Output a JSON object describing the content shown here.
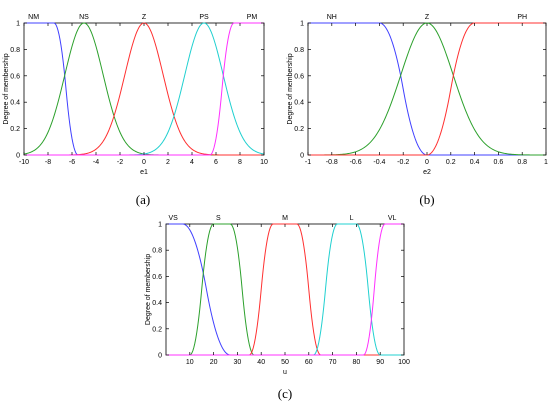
{
  "chart_data": [
    {
      "type": "line",
      "caption": "(a)",
      "xlabel": "e1",
      "ylabel": "Degree of membership",
      "xlim": [
        -10,
        10
      ],
      "ylim": [
        0,
        1
      ],
      "xticks": [
        -10,
        -8,
        -6,
        -4,
        -2,
        0,
        2,
        4,
        6,
        8,
        10
      ],
      "yticks": [
        0,
        0.2,
        0.4,
        0.6,
        0.8,
        1
      ],
      "grid": false,
      "series": [
        {
          "name": "NM",
          "shape": "zshape",
          "params": [
            -7.5,
            -5.5
          ],
          "color": "#4040ff",
          "label_at": -9.2
        },
        {
          "name": "NS",
          "shape": "gauss",
          "params": [
            -5,
            1.6
          ],
          "color": "#2ca02c",
          "label_at": -5
        },
        {
          "name": "Z",
          "shape": "gauss",
          "params": [
            0,
            1.6
          ],
          "color": "#ff3030",
          "label_at": 0
        },
        {
          "name": "PS",
          "shape": "gauss",
          "params": [
            5,
            1.6
          ],
          "color": "#20d0d0",
          "label_at": 5
        },
        {
          "name": "PM",
          "shape": "sshape",
          "params": [
            5.5,
            7.5
          ],
          "color": "#ff30ff",
          "label_at": 9.0
        }
      ]
    },
    {
      "type": "line",
      "caption": "(b)",
      "xlabel": "e2",
      "ylabel": "Degree of membership",
      "xlim": [
        -1,
        1
      ],
      "ylim": [
        0,
        1
      ],
      "xticks": [
        -1,
        -0.8,
        -0.6,
        -0.4,
        -0.2,
        0,
        0.2,
        0.4,
        0.6,
        0.8,
        1
      ],
      "yticks": [
        0,
        0.2,
        0.4,
        0.6,
        0.8,
        1
      ],
      "grid": false,
      "series": [
        {
          "name": "NH",
          "shape": "zshape",
          "params": [
            -0.4,
            0.0
          ],
          "color": "#4040ff",
          "label_at": -0.8
        },
        {
          "name": "Z",
          "shape": "gauss",
          "params": [
            0,
            0.22
          ],
          "color": "#2ca02c",
          "label_at": 0
        },
        {
          "name": "PH",
          "shape": "sshape",
          "params": [
            0.0,
            0.4
          ],
          "color": "#ff3030",
          "label_at": 0.8
        }
      ]
    },
    {
      "type": "line",
      "caption": "(c)",
      "xlabel": "u",
      "ylabel": "Degree of membership",
      "xlim": [
        0,
        100
      ],
      "ylim": [
        0,
        1
      ],
      "xticks": [
        10,
        20,
        30,
        40,
        50,
        60,
        70,
        80,
        90,
        100
      ],
      "yticks": [
        0,
        0.2,
        0.4,
        0.6,
        0.8,
        1
      ],
      "grid": false,
      "series": [
        {
          "name": "VS",
          "shape": "zshape",
          "params": [
            7,
            27
          ],
          "color": "#4040ff",
          "label_at": 3
        },
        {
          "name": "S",
          "shape": "pimf",
          "params": [
            10,
            20,
            27,
            37
          ],
          "color": "#2ca02c",
          "label_at": 22
        },
        {
          "name": "M",
          "shape": "pimf",
          "params": [
            35,
            45,
            55,
            65
          ],
          "color": "#ff3030",
          "label_at": 50
        },
        {
          "name": "L",
          "shape": "pimf",
          "params": [
            62,
            72,
            80,
            90
          ],
          "color": "#20d0d0",
          "label_at": 78
        },
        {
          "name": "VL",
          "shape": "sshape",
          "params": [
            83,
            92
          ],
          "color": "#ff30ff",
          "label_at": 95
        }
      ]
    }
  ]
}
